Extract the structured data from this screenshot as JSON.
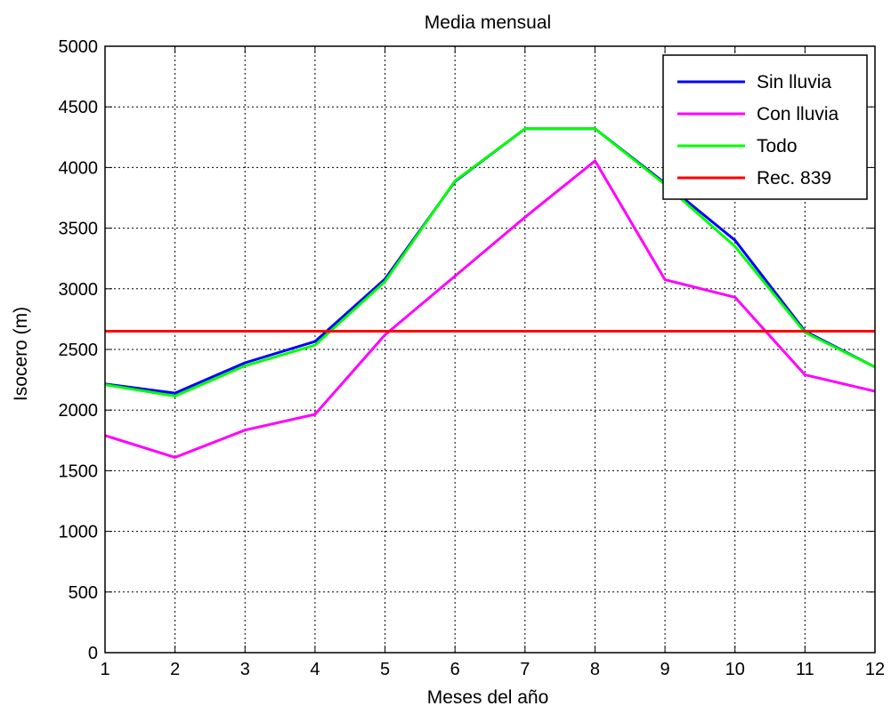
{
  "chart_data": {
    "type": "line",
    "title": "Media mensual",
    "xlabel": "Meses del año",
    "ylabel": "Isocero (m)",
    "xlim": [
      1,
      12
    ],
    "ylim": [
      0,
      5000
    ],
    "x_ticks": [
      1,
      2,
      3,
      4,
      5,
      6,
      7,
      8,
      9,
      10,
      11,
      12
    ],
    "y_ticks": [
      0,
      500,
      1000,
      1500,
      2000,
      2500,
      3000,
      3500,
      4000,
      4500,
      5000
    ],
    "grid": true,
    "legend_position": "top-right",
    "x": [
      1,
      2,
      3,
      4,
      5,
      6,
      7,
      8,
      9,
      10,
      11,
      12
    ],
    "series": [
      {
        "name": "Sin lluvia",
        "color": "#0000ff",
        "values": [
          2215,
          2140,
          2390,
          2565,
          3080,
          3885,
          4320,
          4320,
          3870,
          3400,
          2650,
          2355
        ]
      },
      {
        "name": "Con lluvia",
        "color": "#ff00ff",
        "values": [
          1790,
          1610,
          1835,
          1965,
          2620,
          3105,
          3590,
          4055,
          3075,
          2930,
          2290,
          2155
        ]
      },
      {
        "name": "Todo",
        "color": "#00ff00",
        "values": [
          2210,
          2115,
          2365,
          2535,
          3060,
          3890,
          4320,
          4320,
          3860,
          3350,
          2640,
          2355
        ]
      },
      {
        "name": "Rec. 839",
        "color": "#ff0000",
        "values": [
          2650,
          2650,
          2650,
          2650,
          2650,
          2650,
          2650,
          2650,
          2650,
          2650,
          2650,
          2650
        ]
      }
    ]
  }
}
